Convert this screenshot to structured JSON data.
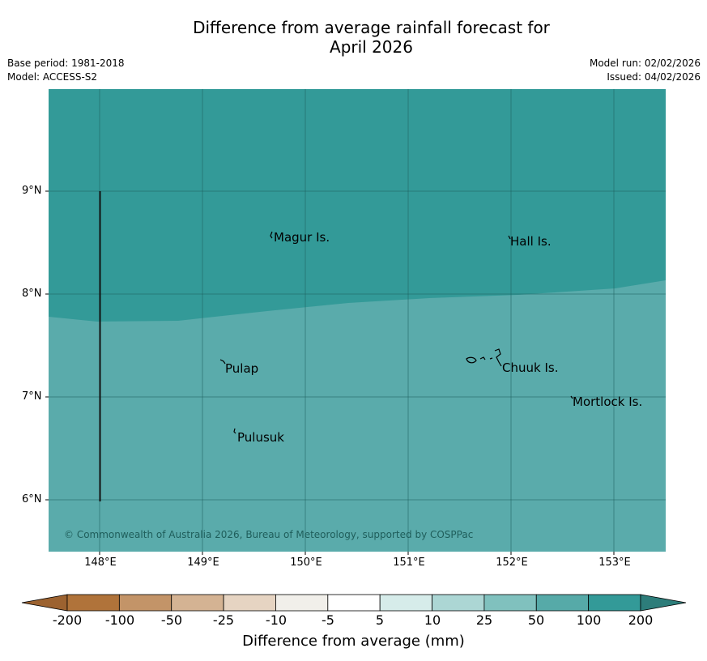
{
  "header": {
    "title_line1": "Difference from average rainfall forecast for",
    "title_line2": "April 2026",
    "base_period": "Base period: 1981-2018",
    "model": "Model: ACCESS-S2",
    "model_run": "Model run: 02/02/2026",
    "issued": "Issued: 04/02/2026"
  },
  "map": {
    "lat_labels": [
      "9°N",
      "8°N",
      "7°N",
      "6°N"
    ],
    "lon_labels": [
      "148°E",
      "149°E",
      "150°E",
      "151°E",
      "152°E",
      "153°E"
    ],
    "places": [
      {
        "name": "Magur Is."
      },
      {
        "name": "Hall Is."
      },
      {
        "name": "Pulap"
      },
      {
        "name": "Chuuk Is."
      },
      {
        "name": "Mortlock Is."
      },
      {
        "name": "Pulusuk"
      }
    ],
    "zones": [
      {
        "category": "100 to 200 mm",
        "color": "#339a98"
      },
      {
        "category": "50 to 100 mm",
        "color": "#5aabab"
      }
    ],
    "copyright": "© Commonwealth of Australia 2026, Bureau of Meteorology, supported by COSPPac"
  },
  "colorbar": {
    "label": "Difference from average (mm)",
    "ticks": [
      "-200",
      "-100",
      "-50",
      "-25",
      "-10",
      "-5",
      "5",
      "10",
      "25",
      "50",
      "100",
      "200"
    ],
    "colors": [
      "#b0733a",
      "#c39468",
      "#d4b393",
      "#e6d4c2",
      "#f1efea",
      "#ffffff",
      "#d6ecea",
      "#acd6d4",
      "#80c1be",
      "#56aaa8",
      "#339a98"
    ],
    "low_extend_color": "#9c6230",
    "high_extend_color": "#2d7d7a"
  }
}
